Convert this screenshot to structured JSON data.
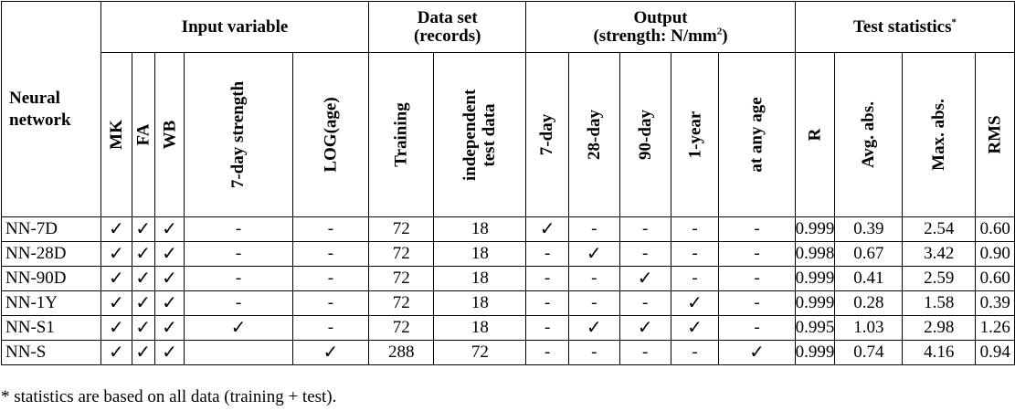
{
  "header": {
    "neural_network": "Neural network",
    "input_variable": "Input variable",
    "data_set_l1": "Data set",
    "data_set_l2": "(records)",
    "output_l1": "Output",
    "output_l2": "(strength: N/mm",
    "output_sup": "2",
    "output_close": ")",
    "test_statistics": "Test statistics",
    "test_sup": "*",
    "sub": [
      "MK",
      "FA",
      "WB",
      "7-day strength",
      "LOG(age)",
      "Training",
      "independent test data",
      "7-day",
      "28-day",
      "90-day",
      "1-year",
      "at any age",
      "R",
      "Avg. abs.",
      "Max. abs.",
      "RMS"
    ]
  },
  "rows": [
    {
      "name": "NN-7D",
      "cells": [
        "✓",
        "✓",
        "✓",
        "-",
        "-",
        "72",
        "18",
        "✓",
        "-",
        "-",
        "-",
        "-",
        "0.999",
        "0.39",
        "2.54",
        "0.60"
      ]
    },
    {
      "name": "NN-28D",
      "cells": [
        "✓",
        "✓",
        "✓",
        "-",
        "-",
        "72",
        "18",
        "-",
        "✓",
        "-",
        "-",
        "-",
        "0.998",
        "0.67",
        "3.42",
        "0.90"
      ]
    },
    {
      "name": "NN-90D",
      "cells": [
        "✓",
        "✓",
        "✓",
        "-",
        "-",
        "72",
        "18",
        "-",
        "-",
        "✓",
        "-",
        "-",
        "0.999",
        "0.41",
        "2.59",
        "0.60"
      ]
    },
    {
      "name": "NN-1Y",
      "cells": [
        "✓",
        "✓",
        "✓",
        "-",
        "-",
        "72",
        "18",
        "-",
        "-",
        "-",
        "✓",
        "-",
        "0.999",
        "0.28",
        "1.58",
        "0.39"
      ]
    },
    {
      "name": "NN-S1",
      "cells": [
        "✓",
        "✓",
        "✓",
        "✓",
        "-",
        "72",
        "18",
        "-",
        "✓",
        "✓",
        "✓",
        "-",
        "0.995",
        "1.03",
        "2.98",
        "1.26"
      ]
    },
    {
      "name": "NN-S",
      "cells": [
        "✓",
        "✓",
        "✓",
        "",
        "✓",
        "288",
        "72",
        "-",
        "-",
        "-",
        "-",
        "✓",
        "0.999",
        "0.74",
        "4.16",
        "0.94"
      ]
    }
  ],
  "footnote": "* statistics are based on all data (training + test)."
}
